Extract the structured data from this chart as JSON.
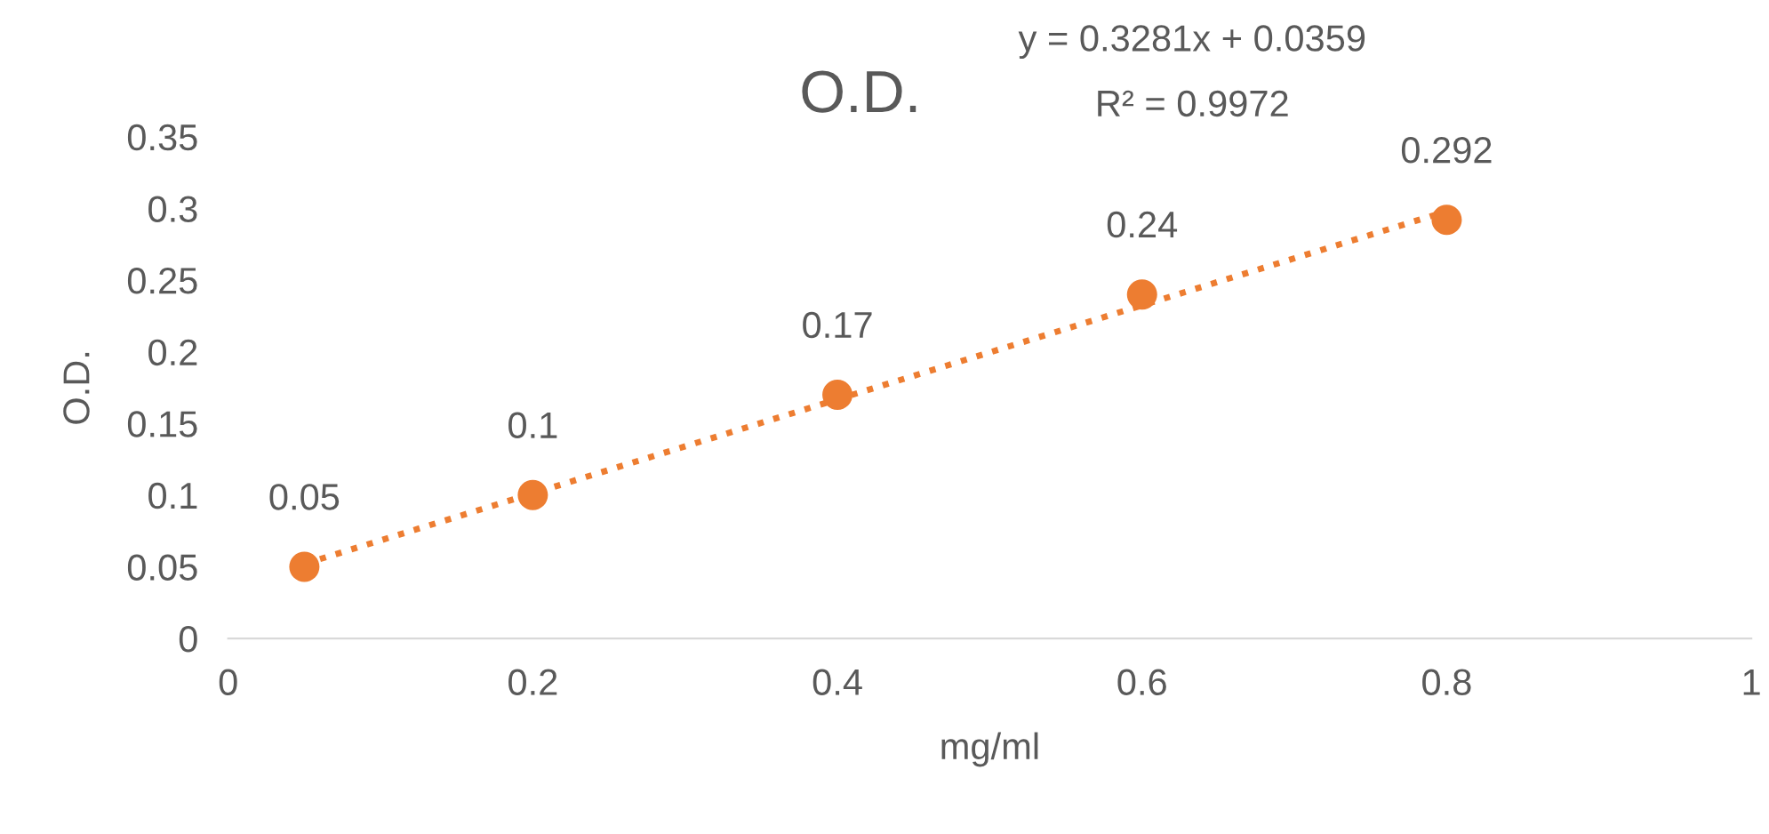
{
  "chart_data": {
    "type": "scatter",
    "title": "O.D.",
    "xlabel": "mg/ml",
    "ylabel": "O.D.",
    "annotations": [
      "y = 0.3281x + 0.0359",
      "R² = 0.9972"
    ],
    "series": [
      {
        "color": "#ed7d31",
        "x": [
          0.05,
          0.2,
          0.4,
          0.6,
          0.8
        ],
        "values": [
          0.05,
          0.1,
          0.17,
          0.24,
          0.292
        ],
        "value_labels": [
          "0.05",
          "0.1",
          "0.17",
          "0.24",
          "0.292"
        ],
        "marker": "circle"
      },
      {
        "type": "line",
        "color": "#ed7d31",
        "x": [
          0.05,
          0.8
        ],
        "values": [
          0.052,
          0.298
        ],
        "line_style": "dotted"
      }
    ],
    "xlim": [
      0,
      1
    ],
    "xticks": [
      0,
      0.2,
      0.4,
      0.6,
      0.8,
      1
    ],
    "ylim": [
      0,
      0.35
    ],
    "yticks": [
      0,
      0.05,
      0.1,
      0.15,
      0.2,
      0.25,
      0.3,
      0.35
    ],
    "grid": false,
    "legend": false
  }
}
